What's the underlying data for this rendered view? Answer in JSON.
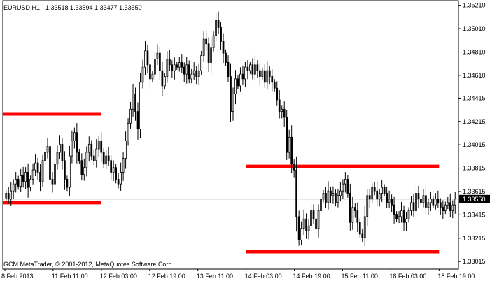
{
  "header": {
    "symbol": "EURUSD,H1",
    "ohlc": "1.33518 1.33594 1.33477 1.33550"
  },
  "footer": {
    "copyright": "GCM MetaTrader, © 2001-2012, MetaQuotes Software Corp."
  },
  "colors": {
    "background": "#ffffff",
    "candle": "#000000",
    "level_line": "#ff0000",
    "price_line": "#c0c0c0",
    "price_tag_bg": "#000000",
    "price_tag_text": "#ffffff"
  },
  "chart_data": {
    "type": "candlestick",
    "title": "EURUSD,H1",
    "current_price": 1.3355,
    "current_price_label": "1.33550",
    "y_range": [
      1.3295,
      1.3525
    ],
    "y_ticks": [
      "1.35210",
      "1.35010",
      "1.34810",
      "1.34610",
      "1.34415",
      "1.34215",
      "1.34015",
      "1.33815",
      "1.33615",
      "1.33415",
      "1.33215",
      "1.33015"
    ],
    "x_ticks": [
      "8 Feb 2013",
      "11 Feb 11:00",
      "12 Feb 03:00",
      "12 Feb 19:00",
      "13 Feb 11:00",
      "14 Feb 03:00",
      "14 Feb 19:00",
      "15 Feb 11:00",
      "18 Feb 03:00",
      "18 Feb 19:00"
    ],
    "levels": [
      {
        "price": 1.3428,
        "from": "8 Feb 2013",
        "to": "12 Feb 03:00"
      },
      {
        "price": 1.3352,
        "from": "8 Feb 2013",
        "to": "12 Feb 03:00"
      },
      {
        "price": 1.3383,
        "from": "14 Feb 03:00",
        "to": "18 Feb 19:00"
      },
      {
        "price": 1.331,
        "from": "14 Feb 03:00",
        "to": "18 Feb 19:00"
      }
    ],
    "close": [
      1.336,
      1.3355,
      1.3362,
      1.3368,
      1.3372,
      1.3366,
      1.3375,
      1.337,
      1.3378,
      1.3365,
      1.3372,
      1.338,
      1.3386,
      1.3378,
      1.337,
      1.3388,
      1.3395,
      1.34,
      1.3372,
      1.3368,
      1.3385,
      1.3395,
      1.3402,
      1.3388,
      1.3372,
      1.3365,
      1.3392,
      1.3405,
      1.3412,
      1.3395,
      1.3388,
      1.3376,
      1.3382,
      1.3395,
      1.3402,
      1.3392,
      1.3388,
      1.3398,
      1.3405,
      1.3395,
      1.3385,
      1.3392,
      1.3388,
      1.3378,
      1.3382,
      1.3372,
      1.3368,
      1.3378,
      1.339,
      1.3405,
      1.342,
      1.3432,
      1.3445,
      1.343,
      1.3415,
      1.3455,
      1.3468,
      1.3482,
      1.347,
      1.3458,
      1.3462,
      1.3475,
      1.348,
      1.3465,
      1.3452,
      1.346,
      1.3475,
      1.347,
      1.3465,
      1.347,
      1.3468,
      1.3472,
      1.3468,
      1.3462,
      1.347,
      1.3458,
      1.3462,
      1.3465,
      1.346,
      1.3465,
      1.3478,
      1.3492,
      1.3488,
      1.3472,
      1.3485,
      1.3495,
      1.3508,
      1.3502,
      1.349,
      1.348,
      1.3472,
      1.346,
      1.343,
      1.3445,
      1.3458,
      1.3452,
      1.3462,
      1.3458,
      1.3468,
      1.3465,
      1.347,
      1.3462,
      1.347,
      1.3465,
      1.346,
      1.3465,
      1.3455,
      1.3465,
      1.346,
      1.3455,
      1.345,
      1.344,
      1.343,
      1.3432,
      1.3425,
      1.3395,
      1.3408,
      1.3385,
      1.338,
      1.334,
      1.332,
      1.333,
      1.3338,
      1.3328,
      1.3332,
      1.3345,
      1.3338,
      1.333,
      1.3345,
      1.3355,
      1.336,
      1.3352,
      1.3362,
      1.3358,
      1.336,
      1.3352,
      1.3358,
      1.3362,
      1.3368,
      1.3372,
      1.336,
      1.3335,
      1.3348,
      1.3345,
      1.3335,
      1.3325,
      1.3322,
      1.334,
      1.3358,
      1.3355,
      1.3365,
      1.3362,
      1.3355,
      1.336,
      1.3365,
      1.336,
      1.3352,
      1.3355,
      1.335,
      1.3342,
      1.3338,
      1.334,
      1.3345,
      1.3335,
      1.3338,
      1.3345,
      1.3352,
      1.3345,
      1.336,
      1.3355,
      1.3352,
      1.3358,
      1.3348,
      1.3352,
      1.3355,
      1.335,
      1.3355,
      1.3352,
      1.3348,
      1.3345,
      1.335,
      1.3352,
      1.3345,
      1.335,
      1.3355
    ]
  }
}
